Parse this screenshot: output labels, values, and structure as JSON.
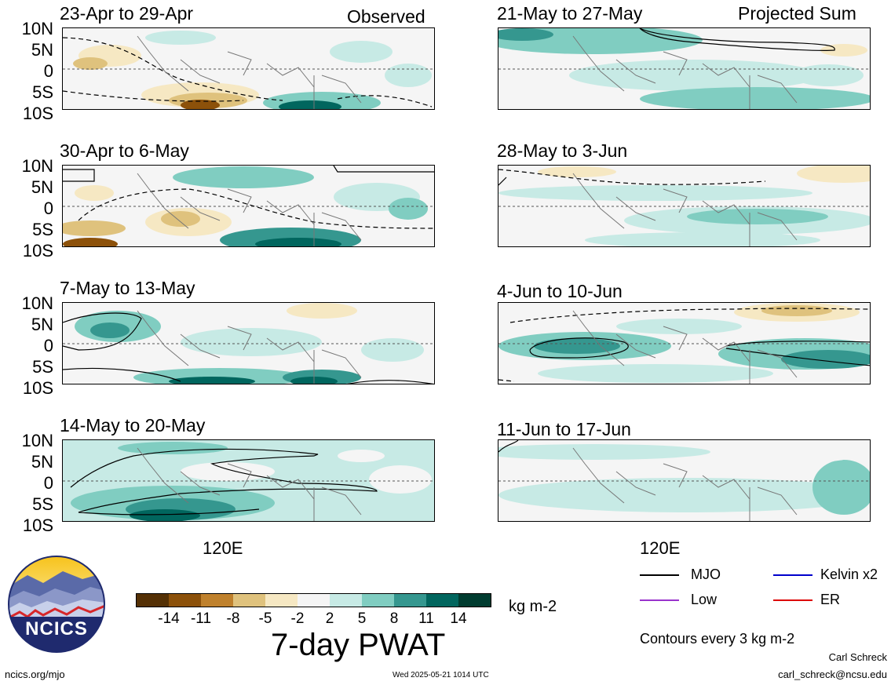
{
  "header": {
    "observed_label": "Observed",
    "projected_label": "Projected Sum"
  },
  "panels": [
    {
      "title": "23-Apr to 29-Apr"
    },
    {
      "title": "30-Apr to 6-May"
    },
    {
      "title": "7-May to 13-May"
    },
    {
      "title": "14-May to 20-May"
    },
    {
      "title": "21-May to 27-May"
    },
    {
      "title": "28-May to 3-Jun"
    },
    {
      "title": "4-Jun to 10-Jun"
    },
    {
      "title": "11-Jun to 17-Jun"
    }
  ],
  "lat_labels": [
    "10N",
    "5N",
    "0",
    "5S",
    "10S"
  ],
  "lon_label": "120E",
  "colorbar": {
    "tick_labels": [
      "-14",
      "-11",
      "-8",
      "-5",
      "-2",
      "2",
      "5",
      "8",
      "11",
      "14"
    ],
    "colors": [
      "#543005",
      "#8c510a",
      "#bf812d",
      "#dfc27d",
      "#f6e8c3",
      "#f5f5f5",
      "#c7eae5",
      "#80cdc1",
      "#35978f",
      "#01665e",
      "#003c30"
    ],
    "units": "kg m-2",
    "title": "7-day PWAT"
  },
  "legend": {
    "items": [
      {
        "label": "MJO",
        "color": "#000000"
      },
      {
        "label": "Kelvin x2",
        "color": "#0000cc"
      },
      {
        "label": "Low",
        "color": "#9933cc"
      },
      {
        "label": "ER",
        "color": "#dd0000"
      }
    ],
    "note": "Contours every 3 kg m-2"
  },
  "logo": {
    "text": "NCICS"
  },
  "footer": {
    "url": "ncics.org/mjo",
    "timestamp": "Wed 2025-05-21 1014 UTC",
    "author": "Carl Schreck",
    "email": "carl_schreck@ncsu.edu"
  }
}
